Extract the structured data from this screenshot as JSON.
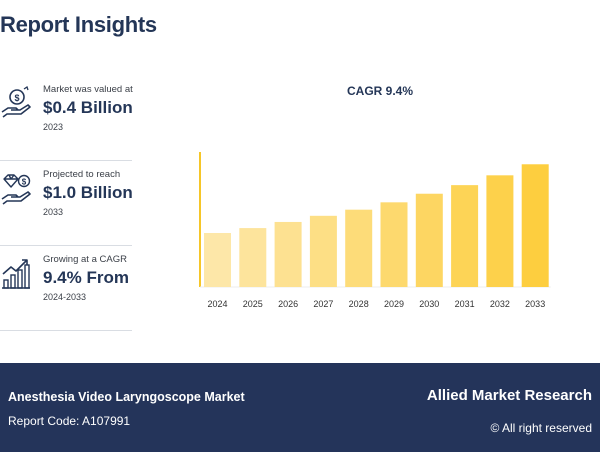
{
  "header": {
    "title": "Report Insights"
  },
  "insights": [
    {
      "icon": "money-hand-icon",
      "caption": "Market was valued at",
      "value": "$0.4 Billion",
      "year": "2023"
    },
    {
      "icon": "diamond-hand-icon",
      "caption": "Projected to reach",
      "value": "$1.0 Billion",
      "year": "2033"
    },
    {
      "icon": "growth-chart-icon",
      "caption": "Growing at a CAGR",
      "value": "9.4% From",
      "year": "2024-2033"
    }
  ],
  "footer": {
    "market": "Anesthesia Video Laryngoscope Market",
    "report_code": "Report Code: A107991",
    "brand": "Allied Market Research",
    "copyright": "© All right reserved"
  },
  "colors": {
    "navy": "#24345a",
    "bar_start": "#fde7a8",
    "bar_end": "#fdce3f",
    "axis": "#f6c628"
  },
  "chart_data": {
    "type": "bar",
    "title": "CAGR 9.4%",
    "categories": [
      "2024",
      "2025",
      "2026",
      "2027",
      "2028",
      "2029",
      "2030",
      "2031",
      "2032",
      "2033"
    ],
    "values": [
      0.44,
      0.48,
      0.53,
      0.58,
      0.63,
      0.69,
      0.76,
      0.83,
      0.91,
      1.0
    ],
    "xlabel": "",
    "ylabel": "",
    "ylim": [
      0,
      1.1
    ],
    "grid": false
  }
}
